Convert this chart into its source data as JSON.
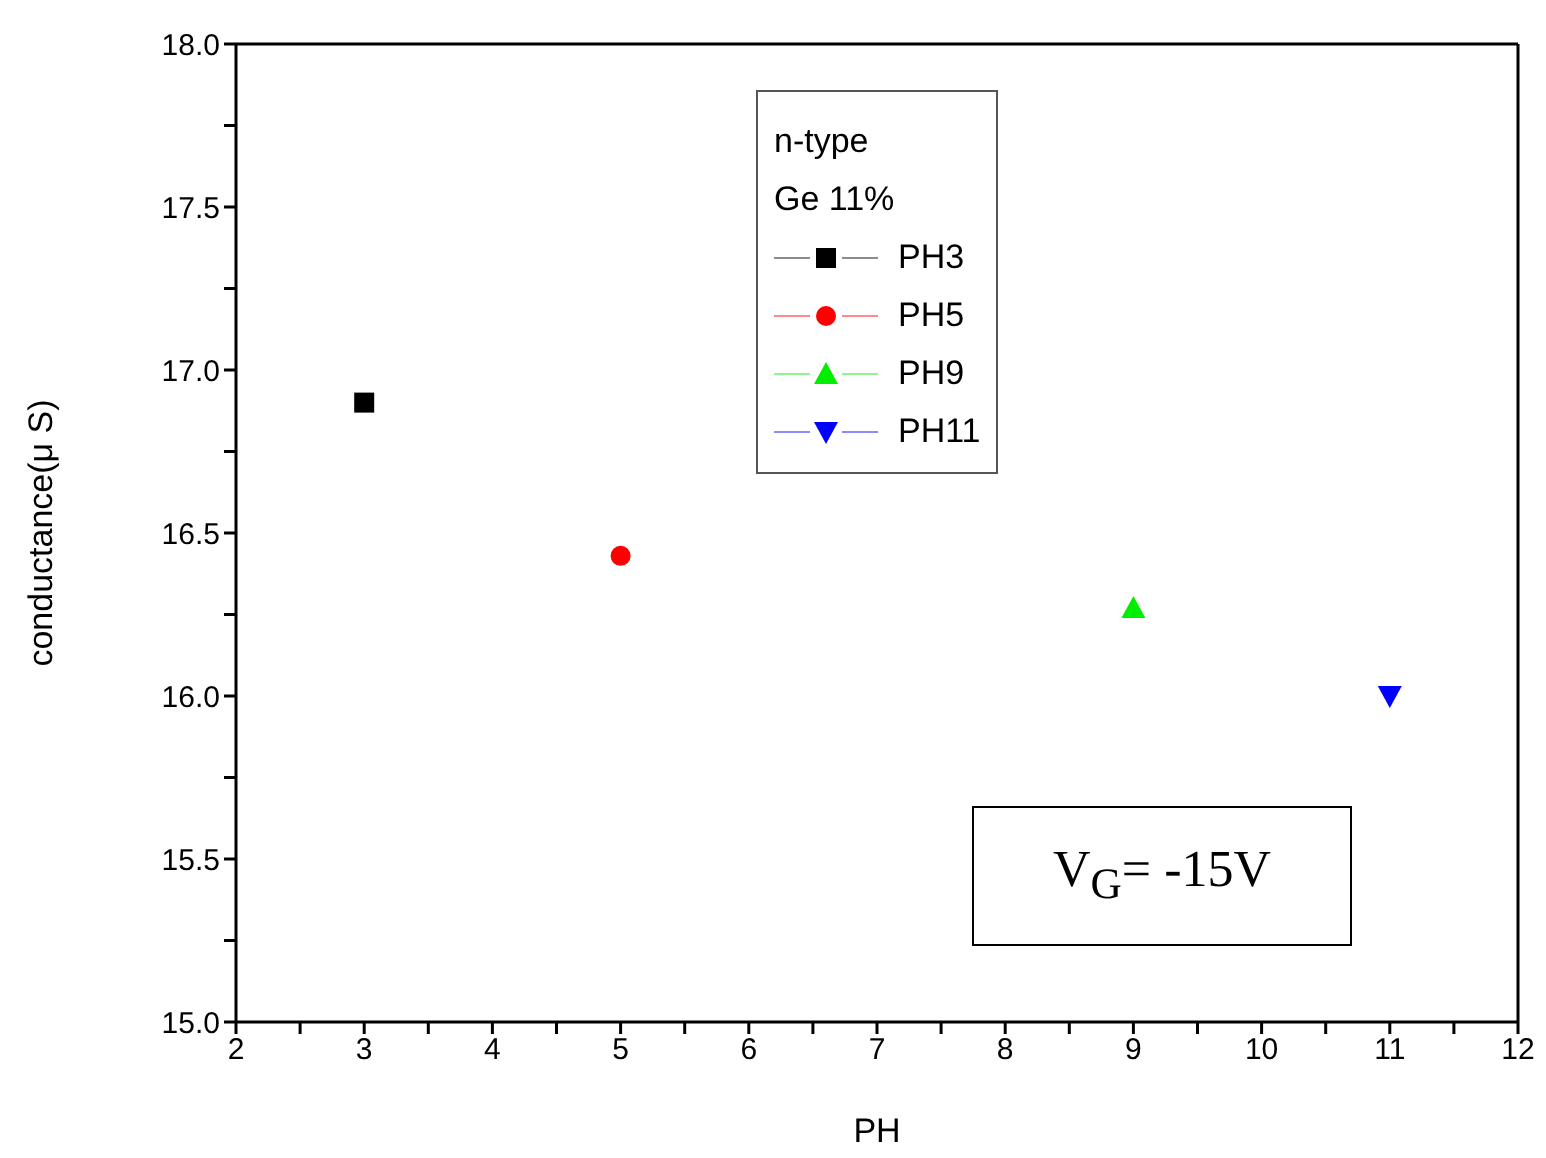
{
  "chart_data": {
    "type": "scatter",
    "xlabel": "PH",
    "ylabel": "conductance(μ S)",
    "legend_title": "n-type\nGe 11%",
    "legend": "top",
    "xlim": [
      2,
      12
    ],
    "ylim": [
      15,
      18
    ],
    "xticks": [
      2,
      {
        "value": 2.5,
        "label": null
      },
      3,
      {
        "value": 3.5,
        "label": null
      },
      4,
      {
        "value": 4.5,
        "label": null
      },
      5,
      {
        "value": 5.5,
        "label": null
      },
      6,
      {
        "value": 6.5,
        "label": null
      },
      7,
      {
        "value": 7.5,
        "label": null
      },
      8,
      {
        "value": 8.5,
        "label": null
      },
      9,
      {
        "value": 9.5,
        "label": null
      },
      10,
      {
        "value": 10.5,
        "label": null
      },
      11,
      {
        "value": 11.5,
        "label": null
      },
      12
    ],
    "yticks": [
      {
        "value": 15,
        "label": "15.0"
      },
      {
        "value": 15.25,
        "label": null
      },
      {
        "value": 15.5,
        "label": "15.5"
      },
      {
        "value": 15.75,
        "label": null
      },
      {
        "value": 16,
        "label": "16.0"
      },
      {
        "value": 16.25,
        "label": null
      },
      {
        "value": 16.5,
        "label": "16.5"
      },
      {
        "value": 16.75,
        "label": null
      },
      {
        "value": 17,
        "label": "17.0"
      },
      {
        "value": 17.25,
        "label": null
      },
      {
        "value": 17.5,
        "label": "17.5"
      },
      {
        "value": 17.75,
        "label": null
      },
      {
        "value": 18,
        "label": "18.0"
      }
    ],
    "series": [
      {
        "name": "PH3",
        "color": "#000000",
        "marker": "square",
        "x": [
          3
        ],
        "values": [
          16.9
        ]
      },
      {
        "name": "PH5",
        "color": "#ff0000",
        "marker": "circle",
        "x": [
          5
        ],
        "values": [
          16.43
        ]
      },
      {
        "name": "PH9",
        "color": "#00ee00",
        "marker": "triangle",
        "x": [
          9
        ],
        "values": [
          16.27
        ]
      },
      {
        "name": "PH11",
        "color": "#0000ff",
        "marker": "triangle-down",
        "x": [
          11
        ],
        "values": [
          16.0
        ]
      }
    ],
    "annotations": [
      "V$_{G}$= -15V"
    ]
  }
}
